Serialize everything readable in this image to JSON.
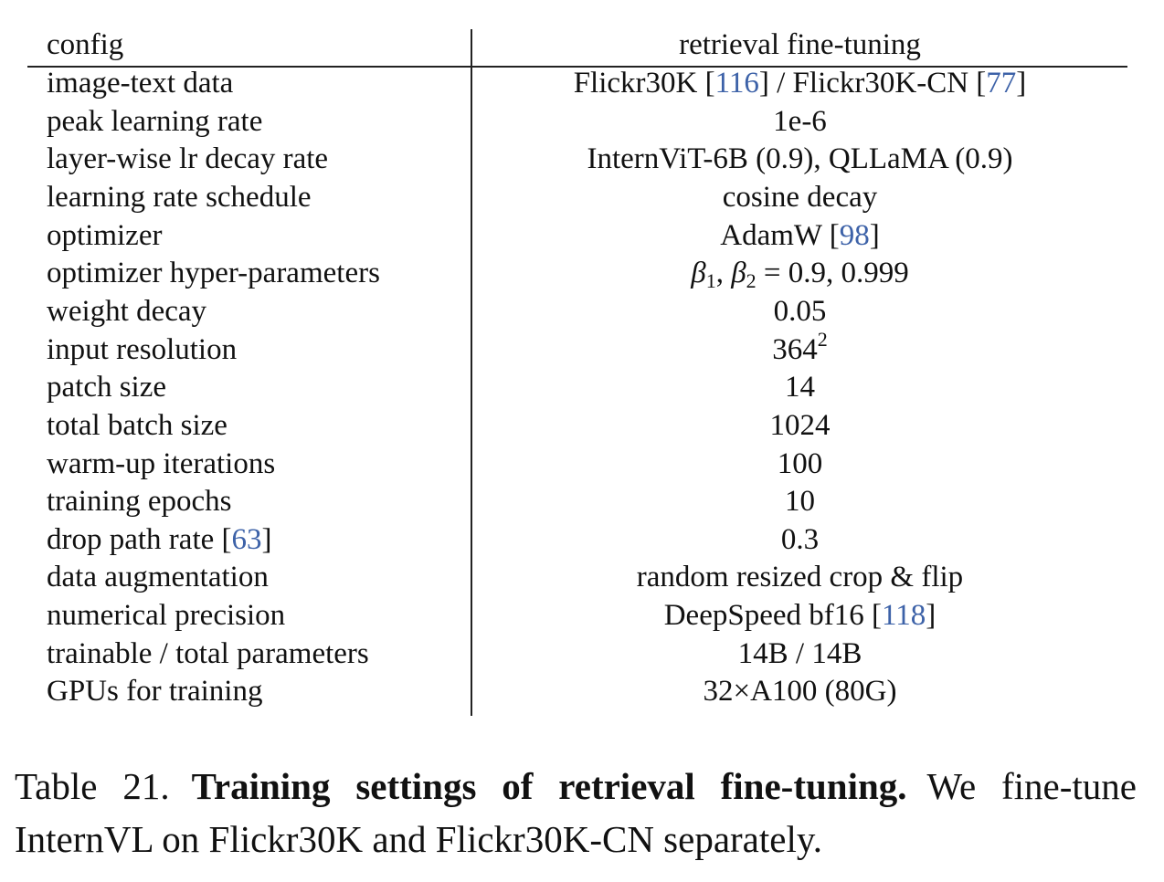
{
  "table": {
    "header": {
      "config": "config",
      "value": "retrieval fine-tuning"
    },
    "rows": [
      {
        "key": "image-text data",
        "value_parts": [
          {
            "text": "Flickr30K ["
          },
          {
            "text": "116",
            "cite": true
          },
          {
            "text": "] / Flickr30K-CN ["
          },
          {
            "text": "77",
            "cite": true
          },
          {
            "text": "]"
          }
        ]
      },
      {
        "key": "peak learning rate",
        "value_parts": [
          {
            "text": "1e-6"
          }
        ]
      },
      {
        "key": "layer-wise lr decay rate",
        "value_parts": [
          {
            "text": "InternViT-6B (0.9), QLLaMA (0.9)"
          }
        ]
      },
      {
        "key": "learning rate schedule",
        "value_parts": [
          {
            "text": "cosine decay"
          }
        ]
      },
      {
        "key": "optimizer",
        "value_parts": [
          {
            "text": "AdamW ["
          },
          {
            "text": "98",
            "cite": true
          },
          {
            "text": "]"
          }
        ]
      },
      {
        "key": "optimizer hyper-parameters",
        "value_parts": [
          {
            "text": "β",
            "math": true
          },
          {
            "text": "1",
            "sub": true
          },
          {
            "text": ", "
          },
          {
            "text": "β",
            "math": true
          },
          {
            "text": "2",
            "sub": true
          },
          {
            "text": " = 0.9, 0.999"
          }
        ]
      },
      {
        "key": "weight decay",
        "value_parts": [
          {
            "text": "0.05"
          }
        ]
      },
      {
        "key": "input resolution",
        "value_parts": [
          {
            "text": "364"
          },
          {
            "text": "2",
            "sup": true
          }
        ]
      },
      {
        "key": "patch size",
        "value_parts": [
          {
            "text": "14"
          }
        ]
      },
      {
        "key": "total batch size",
        "value_parts": [
          {
            "text": "1024"
          }
        ]
      },
      {
        "key": "warm-up iterations",
        "value_parts": [
          {
            "text": "100"
          }
        ]
      },
      {
        "key": "training epochs",
        "value_parts": [
          {
            "text": "10"
          }
        ]
      },
      {
        "key_parts": [
          {
            "text": "drop path rate ["
          },
          {
            "text": "63",
            "cite": true
          },
          {
            "text": "]"
          }
        ],
        "value_parts": [
          {
            "text": "0.3"
          }
        ]
      },
      {
        "key": "data augmentation",
        "value_parts": [
          {
            "text": "random resized crop & flip"
          }
        ]
      },
      {
        "key": "numerical precision",
        "value_parts": [
          {
            "text": "DeepSpeed bf16 ["
          },
          {
            "text": "118",
            "cite": true
          },
          {
            "text": "]"
          }
        ]
      },
      {
        "key": "trainable / total parameters",
        "value_parts": [
          {
            "text": "14B / 14B"
          }
        ]
      },
      {
        "key": "GPUs for training",
        "value_parts": [
          {
            "text": "32×A100 (80G)"
          }
        ]
      }
    ]
  },
  "caption": {
    "label": "Table 21.",
    "bold": "Training settings of retrieval fine-tuning.",
    "text": "We fine-tune InternVL on Flickr30K and Flickr30K-CN separately."
  }
}
